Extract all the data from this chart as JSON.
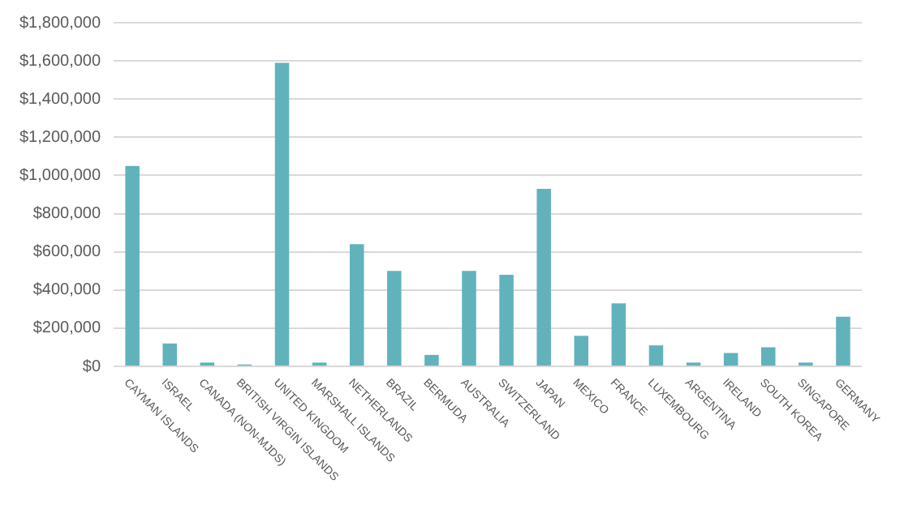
{
  "chart_data": {
    "type": "bar",
    "categories": [
      "CAYMAN ISLANDS",
      "ISRAEL",
      "CANADA (NON-MJDS)",
      "BRITISH VIRGIN ISLANDS",
      "UNITED KINGDOM",
      "MARSHALL ISLANDS",
      "NETHERLANDS",
      "BRAZIL",
      "BERMUDA",
      "AUSTRALIA",
      "SWITZERLAND",
      "JAPAN",
      "MEXICO",
      "FRANCE",
      "LUXEMBOURG",
      "ARGENTINA",
      "IRELAND",
      "SOUTH KOREA",
      "SINGAPORE",
      "GERMANY"
    ],
    "values": [
      1050000,
      120000,
      20000,
      10000,
      1590000,
      20000,
      640000,
      500000,
      60000,
      500000,
      480000,
      930000,
      160000,
      330000,
      110000,
      20000,
      70000,
      100000,
      20000,
      260000
    ],
    "color": "#62b2bc",
    "ylim": [
      0,
      1800000
    ],
    "yticks": [
      {
        "value": 0,
        "label": "$0"
      },
      {
        "value": 200000,
        "label": "$200,000"
      },
      {
        "value": 400000,
        "label": "$400,000"
      },
      {
        "value": 600000,
        "label": "$600,000"
      },
      {
        "value": 800000,
        "label": "$800,000"
      },
      {
        "value": 1000000,
        "label": "$1,000,000"
      },
      {
        "value": 1200000,
        "label": "$1,200,000"
      },
      {
        "value": 1400000,
        "label": "$1,400,000"
      },
      {
        "value": 1600000,
        "label": "$1,600,000"
      },
      {
        "value": 1800000,
        "label": "$1,800,000"
      }
    ],
    "grid": "y"
  }
}
